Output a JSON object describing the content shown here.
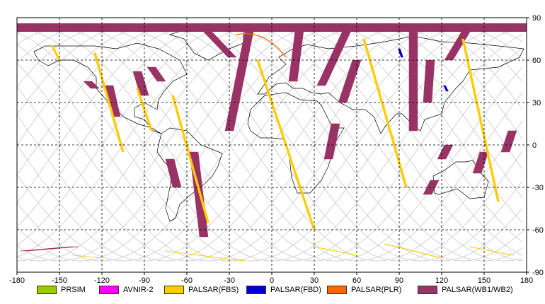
{
  "map": {
    "x_ticks": [
      "-180",
      "-150",
      "-120",
      "-90",
      "-60",
      "-30",
      "0",
      "30",
      "60",
      "90",
      "120",
      "150",
      "180"
    ],
    "y_ticks": [
      "90",
      "60",
      "30",
      "0",
      "-30",
      "-60",
      "-90"
    ],
    "lon_values": [
      -180,
      -150,
      -120,
      -90,
      -60,
      -30,
      0,
      30,
      60,
      90,
      120,
      150,
      180
    ],
    "lat_values": [
      90,
      60,
      30,
      0,
      -30,
      -60,
      -90
    ]
  },
  "legend": [
    {
      "label": "PRSIM",
      "color": "#99cc00"
    },
    {
      "label": "AVNIR-2",
      "color": "#ff00ff"
    },
    {
      "label": "PALSAR(FBS)",
      "color": "#ffcc00"
    },
    {
      "label": "PALSAR(FBD)",
      "color": "#0000cc"
    },
    {
      "label": "PALSAR(PLR)",
      "color": "#ff6600"
    },
    {
      "label": "PALSAR(WB1/WB2)",
      "color": "#993366"
    }
  ],
  "colors": {
    "wb": "#993366",
    "fbs": "#ffcc00",
    "fbd": "#0000cc",
    "plr": "#ff6600",
    "coast": "#000000",
    "orbit": "#c8c8c8",
    "grid": "#000000"
  },
  "wb_swaths": [
    {
      "lon1": -175,
      "lat1": -75,
      "lon2": -140,
      "lat2": -72
    },
    {
      "lon1": -130,
      "lat1": 45,
      "lon2": -125,
      "lat2": 40
    },
    {
      "lon1": -115,
      "lat1": 42,
      "lon2": -110,
      "lat2": 20
    },
    {
      "lon1": -95,
      "lat1": 52,
      "lon2": -90,
      "lat2": 35
    },
    {
      "lon1": -85,
      "lat1": 55,
      "lon2": -78,
      "lat2": 45
    },
    {
      "lon1": -72,
      "lat1": -10,
      "lon2": -67,
      "lat2": -30
    },
    {
      "lon1": -55,
      "lat1": -5,
      "lon2": -48,
      "lat2": -65
    },
    {
      "lon1": -50,
      "lat1": 85,
      "lon2": -28,
      "lat2": 62
    },
    {
      "lon1": -15,
      "lat1": 85,
      "lon2": -30,
      "lat2": 10
    },
    {
      "lon1": 20,
      "lat1": 85,
      "lon2": 15,
      "lat2": 45
    },
    {
      "lon1": 55,
      "lat1": 85,
      "lon2": 35,
      "lat2": 42
    },
    {
      "lon1": 60,
      "lat1": 60,
      "lon2": 50,
      "lat2": 30
    },
    {
      "lon1": 45,
      "lat1": 15,
      "lon2": 40,
      "lat2": -10
    },
    {
      "lon1": 100,
      "lat1": 85,
      "lon2": 100,
      "lat2": 10
    },
    {
      "lon1": 112,
      "lat1": 60,
      "lon2": 110,
      "lat2": 30
    },
    {
      "lon1": 140,
      "lat1": 85,
      "lon2": 125,
      "lat2": 60
    },
    {
      "lon1": 125,
      "lat1": 0,
      "lon2": 120,
      "lat2": -10
    },
    {
      "lon1": 150,
      "lat1": -5,
      "lon2": 145,
      "lat2": -20
    },
    {
      "lon1": 115,
      "lat1": -25,
      "lon2": 110,
      "lat2": -35
    },
    {
      "lon1": 170,
      "lat1": 10,
      "lon2": 165,
      "lat2": -5
    }
  ],
  "fbs_swaths": [
    {
      "lon1": -155,
      "lat1": 70,
      "lon2": -150,
      "lat2": 60
    },
    {
      "lon1": -125,
      "lat1": 65,
      "lon2": -105,
      "lat2": -5
    },
    {
      "lon1": -95,
      "lat1": 40,
      "lon2": -85,
      "lat2": 10
    },
    {
      "lon1": -70,
      "lat1": 35,
      "lon2": -45,
      "lat2": -55
    },
    {
      "lon1": -10,
      "lat1": 60,
      "lon2": 30,
      "lat2": -60
    },
    {
      "lon1": 65,
      "lat1": 75,
      "lon2": 95,
      "lat2": -30
    },
    {
      "lon1": 135,
      "lat1": 75,
      "lon2": 160,
      "lat2": -40
    },
    {
      "lon1": -140,
      "lat1": -78,
      "lon2": -120,
      "lat2": -80
    },
    {
      "lon1": -75,
      "lat1": -75,
      "lon2": -20,
      "lat2": -82
    },
    {
      "lon1": 30,
      "lat1": -72,
      "lon2": 60,
      "lat2": -78
    },
    {
      "lon1": 80,
      "lat1": -70,
      "lon2": 120,
      "lat2": -80
    },
    {
      "lon1": 140,
      "lat1": -72,
      "lon2": 170,
      "lat2": -78
    }
  ]
}
